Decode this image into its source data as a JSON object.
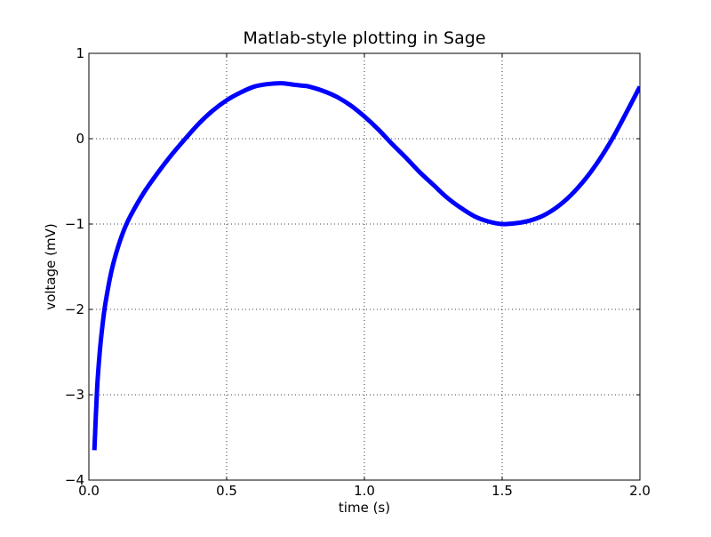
{
  "chart_data": {
    "type": "line",
    "title": "Matlab-style plotting in Sage",
    "xlabel": "time (s)",
    "ylabel": "voltage (mV)",
    "xlim": [
      0.0,
      2.0
    ],
    "ylim": [
      -4,
      1
    ],
    "xticks": [
      0.0,
      0.5,
      1.0,
      1.5,
      2.0
    ],
    "xtick_labels": [
      "0.0",
      "0.5",
      "1.0",
      "1.5",
      "2.0"
    ],
    "yticks": [
      -4,
      -3,
      -2,
      -1,
      0,
      1
    ],
    "ytick_labels": [
      "−4",
      "−3",
      "−2",
      "−1",
      "0",
      "1"
    ],
    "grid": true,
    "series": [
      {
        "color": "#0000ff",
        "x": [
          0.02,
          0.03,
          0.04,
          0.05,
          0.06,
          0.08,
          0.1,
          0.125,
          0.15,
          0.2,
          0.25,
          0.3,
          0.35,
          0.4,
          0.45,
          0.5,
          0.55,
          0.6,
          0.65,
          0.7,
          0.75,
          0.78,
          0.8,
          0.85,
          0.9,
          0.95,
          1.0,
          1.05,
          1.1,
          1.15,
          1.2,
          1.25,
          1.3,
          1.35,
          1.4,
          1.45,
          1.5,
          1.55,
          1.6,
          1.65,
          1.7,
          1.75,
          1.8,
          1.85,
          1.9,
          1.95,
          2.0
        ],
        "y": [
          -3.65,
          -2.92,
          -2.48,
          -2.17,
          -1.93,
          -1.58,
          -1.33,
          -1.09,
          -0.91,
          -0.63,
          -0.4,
          -0.19,
          0.0,
          0.18,
          0.33,
          0.45,
          0.54,
          0.61,
          0.64,
          0.65,
          0.63,
          0.62,
          0.61,
          0.56,
          0.49,
          0.39,
          0.26,
          0.11,
          -0.06,
          -0.22,
          -0.39,
          -0.54,
          -0.69,
          -0.81,
          -0.91,
          -0.97,
          -1.0,
          -0.99,
          -0.96,
          -0.9,
          -0.8,
          -0.66,
          -0.48,
          -0.26,
          0.0,
          0.3,
          0.61
        ]
      }
    ]
  }
}
